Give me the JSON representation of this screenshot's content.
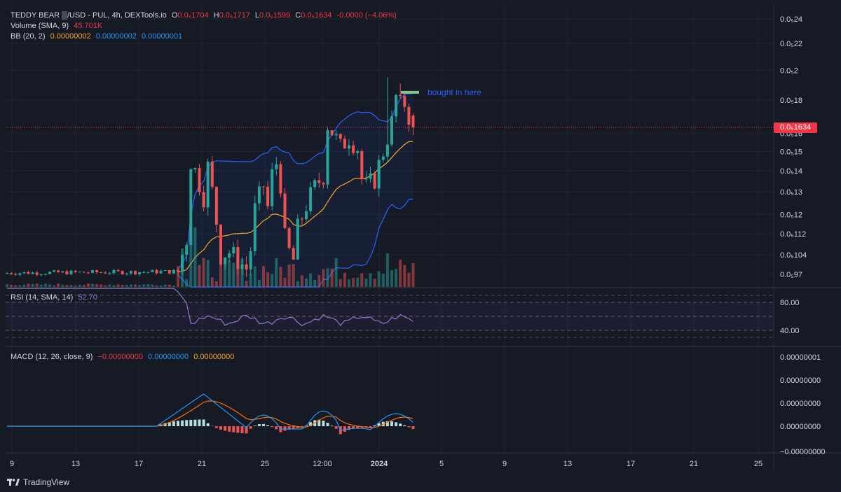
{
  "header": {
    "symbol": "TEDDY BEAR ▒/USD - PUL, 4h, DEXTools.io",
    "open_label": "O",
    "open": "0.0₅1704",
    "high_label": "H",
    "high": "0.0₅1717",
    "low_label": "L",
    "low": "0.0₅1599",
    "close_label": "C",
    "close": "0.0₅1634",
    "change": "-0.0000 (−4.06%)"
  },
  "volume_legend": {
    "label": "Volume (SMA, 9)",
    "value": "45.701K"
  },
  "bb_legend": {
    "label": "BB (20, 2)",
    "basis": "0.00000002",
    "upper": "0.00000002",
    "lower": "0.00000001"
  },
  "rsi_legend": {
    "label": "RSI (14, SMA, 14)",
    "value": "52.70"
  },
  "macd_legend": {
    "label": "MACD (12, 26, close, 9)",
    "macd": "−0.00000000",
    "signal": "0.00000000",
    "hist": "0.00000000"
  },
  "annotation": {
    "text": "bought in here"
  },
  "last_price_tag": "0.0₅1634",
  "branding": "TradingView",
  "colors": {
    "up": "#26a69a",
    "down": "#ef5350",
    "bb_band": "#2962ff",
    "bb_basis": "#f5a623",
    "rsi": "#9575cd",
    "macd": "#2196f3",
    "signal": "#ff6d00",
    "bg": "#161a25",
    "annotation_marker": "#81c784"
  },
  "chart_data": [
    {
      "type": "candlestick",
      "title": "TEDDY BEAR ▒/USD - PUL, 4h, DEXTools.io",
      "y_tick_labels": [
        "0.0₅24",
        "0.0₅22",
        "0.0₅2",
        "0.0₅18",
        "0.0₅16",
        "0.0₅15",
        "0.0₅14",
        "0.0₅13",
        "0.0₅12",
        "0.0₅112",
        "0.0₅104",
        "0.0₅97"
      ],
      "y_tick_values": [
        24,
        22,
        20,
        18,
        16,
        15,
        14,
        13,
        12,
        11.2,
        10.4,
        9.7
      ],
      "y_scale": "log",
      "x_tick_labels": [
        "9",
        "13",
        "17",
        "21",
        "25",
        "12:00",
        "2024",
        "5",
        "9",
        "13",
        "17",
        "21",
        "25"
      ],
      "ohlc_units": "×1e-6 USD",
      "key_points": {
        "open": 17.04,
        "high": 17.17,
        "low": 15.99,
        "close": 16.34,
        "period_high": 19.5
      },
      "grid": true
    },
    {
      "type": "line",
      "title": "RSI (14, SMA, 14)",
      "y_tick_labels": [
        "80.00",
        "40.00"
      ],
      "y_tick_values": [
        80,
        40
      ],
      "ylim": [
        20,
        100
      ],
      "last_value": 52.7
    },
    {
      "type": "line",
      "title": "MACD (12, 26, close, 9)",
      "y_tick_labels": [
        "0.00000001",
        "0.00000000",
        "0.00000000",
        "0.00000000",
        "−0.00000000"
      ]
    }
  ]
}
